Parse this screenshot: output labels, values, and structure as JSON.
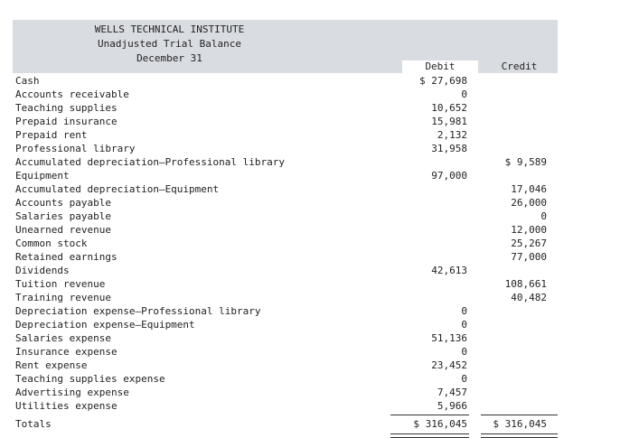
{
  "header": {
    "company": "WELLS TECHNICAL INSTITUTE",
    "title": "Unadjusted Trial Balance",
    "date": "December 31"
  },
  "columns": {
    "debit": "Debit",
    "credit": "Credit"
  },
  "rows": [
    {
      "account": "Cash",
      "debit": "$ 27,698",
      "credit": ""
    },
    {
      "account": "Accounts receivable",
      "debit": "0",
      "credit": ""
    },
    {
      "account": "Teaching supplies",
      "debit": "10,652",
      "credit": ""
    },
    {
      "account": "Prepaid insurance",
      "debit": "15,981",
      "credit": ""
    },
    {
      "account": "Prepaid rent",
      "debit": "2,132",
      "credit": ""
    },
    {
      "account": "Professional library",
      "debit": "31,958",
      "credit": ""
    },
    {
      "account": "Accumulated depreciation—Professional library",
      "debit": "",
      "credit": "$ 9,589"
    },
    {
      "account": "Equipment",
      "debit": "97,000",
      "credit": ""
    },
    {
      "account": "Accumulated depreciation—Equipment",
      "debit": "",
      "credit": "17,046"
    },
    {
      "account": "Accounts payable",
      "debit": "",
      "credit": "26,000"
    },
    {
      "account": "Salaries payable",
      "debit": "",
      "credit": "0"
    },
    {
      "account": "Unearned revenue",
      "debit": "",
      "credit": "12,000"
    },
    {
      "account": "Common stock",
      "debit": "",
      "credit": "25,267"
    },
    {
      "account": "Retained earnings",
      "debit": "",
      "credit": "77,000"
    },
    {
      "account": "Dividends",
      "debit": "42,613",
      "credit": ""
    },
    {
      "account": "Tuition revenue",
      "debit": "",
      "credit": "108,661"
    },
    {
      "account": "Training revenue",
      "debit": "",
      "credit": "40,482"
    },
    {
      "account": "Depreciation expense—Professional library",
      "debit": "0",
      "credit": ""
    },
    {
      "account": "Depreciation expense—Equipment",
      "debit": "0",
      "credit": ""
    },
    {
      "account": "Salaries expense",
      "debit": "51,136",
      "credit": ""
    },
    {
      "account": "Insurance expense",
      "debit": "0",
      "credit": ""
    },
    {
      "account": "Rent expense",
      "debit": "23,452",
      "credit": ""
    },
    {
      "account": "Teaching supplies expense",
      "debit": "0",
      "credit": ""
    },
    {
      "account": "Advertising expense",
      "debit": "7,457",
      "credit": ""
    },
    {
      "account": "Utilities expense",
      "debit": "5,966",
      "credit": ""
    }
  ],
  "totals": {
    "label": "Totals",
    "debit": "$ 316,045",
    "credit": "$ 316,045"
  }
}
